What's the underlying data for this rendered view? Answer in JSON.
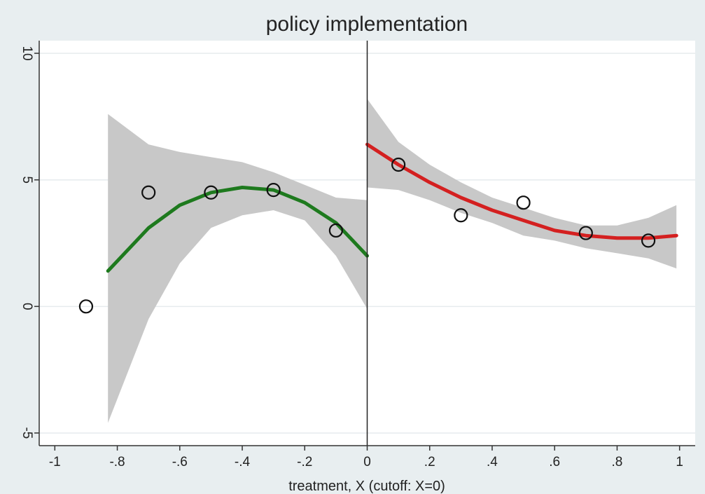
{
  "chart_data": {
    "type": "scatter",
    "title": "policy implementation",
    "xlabel": "treatment, X (cutoff: X=0)",
    "ylabel": "",
    "xlim": [
      -1.05,
      1.05
    ],
    "ylim": [
      -5.5,
      10.5
    ],
    "cutoff": 0,
    "x_ticks": [
      {
        "value": -1,
        "label": "-1"
      },
      {
        "value": -0.8,
        "label": "-.8"
      },
      {
        "value": -0.6,
        "label": "-.6"
      },
      {
        "value": -0.4,
        "label": "-.4"
      },
      {
        "value": -0.2,
        "label": "-.2"
      },
      {
        "value": 0,
        "label": "0"
      },
      {
        "value": 0.2,
        "label": ".2"
      },
      {
        "value": 0.4,
        "label": ".4"
      },
      {
        "value": 0.6,
        "label": ".6"
      },
      {
        "value": 0.8,
        "label": ".8"
      },
      {
        "value": 1,
        "label": "1"
      }
    ],
    "y_ticks": [
      {
        "value": -5,
        "label": "-5"
      },
      {
        "value": 0,
        "label": "0"
      },
      {
        "value": 5,
        "label": "5"
      },
      {
        "value": 10,
        "label": "10"
      }
    ],
    "grid": true,
    "points": [
      {
        "x": -0.9,
        "y": 0.0
      },
      {
        "x": -0.7,
        "y": 4.5
      },
      {
        "x": -0.5,
        "y": 4.5
      },
      {
        "x": -0.3,
        "y": 4.6
      },
      {
        "x": -0.1,
        "y": 3.0
      },
      {
        "x": 0.1,
        "y": 5.6
      },
      {
        "x": 0.3,
        "y": 3.6
      },
      {
        "x": 0.5,
        "y": 4.1
      },
      {
        "x": 0.7,
        "y": 2.9
      },
      {
        "x": 0.9,
        "y": 2.6
      }
    ],
    "fits": [
      {
        "side": "left",
        "color": "#1e7a1e",
        "band_color": "#c8c8c8",
        "x": [
          -0.83,
          -0.7,
          -0.6,
          -0.5,
          -0.4,
          -0.3,
          -0.2,
          -0.1,
          0.0
        ],
        "y": [
          1.4,
          3.1,
          4.0,
          4.5,
          4.7,
          4.6,
          4.1,
          3.3,
          2.0
        ],
        "lower": [
          -4.6,
          -0.5,
          1.7,
          3.1,
          3.6,
          3.8,
          3.4,
          2.0,
          -0.1
        ],
        "upper": [
          7.6,
          6.4,
          6.1,
          5.9,
          5.7,
          5.3,
          4.8,
          4.3,
          4.2
        ]
      },
      {
        "side": "right",
        "color": "#d42020",
        "band_color": "#c8c8c8",
        "x": [
          0.0,
          0.1,
          0.2,
          0.3,
          0.4,
          0.5,
          0.6,
          0.7,
          0.8,
          0.9,
          0.99
        ],
        "y": [
          6.4,
          5.6,
          4.9,
          4.3,
          3.8,
          3.4,
          3.0,
          2.8,
          2.7,
          2.7,
          2.8
        ],
        "lower": [
          4.7,
          4.6,
          4.2,
          3.7,
          3.3,
          2.8,
          2.6,
          2.3,
          2.1,
          1.9,
          1.5
        ],
        "upper": [
          8.2,
          6.5,
          5.6,
          4.9,
          4.3,
          3.9,
          3.5,
          3.2,
          3.2,
          3.5,
          4.0
        ]
      }
    ]
  }
}
